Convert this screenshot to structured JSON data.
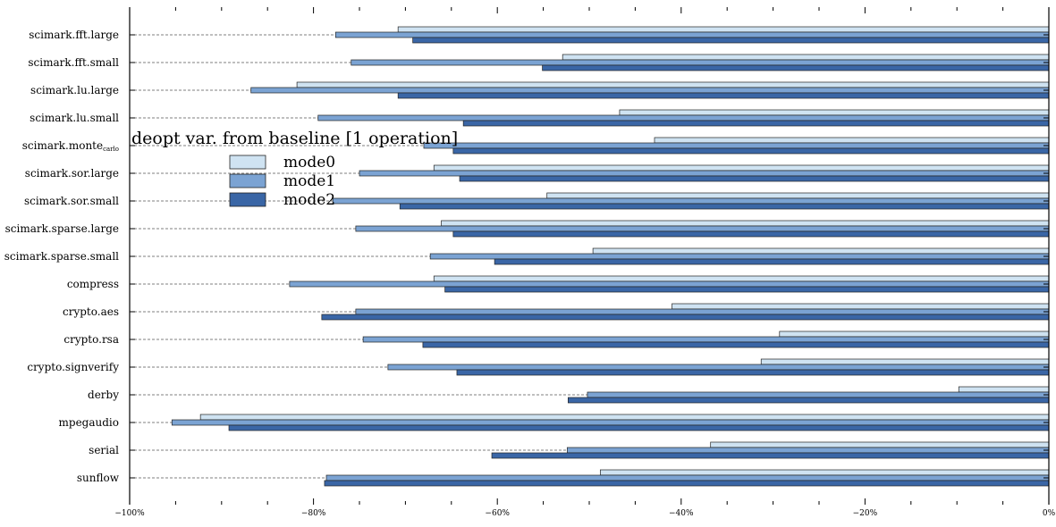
{
  "chart_data": {
    "type": "bar",
    "orientation": "horizontal",
    "title": "",
    "xlabel": "",
    "ylabel": "",
    "xlim": [
      -100,
      0
    ],
    "grid": "dashed horizontal category lines",
    "legend": {
      "title": "deopt var. from baseline [1 operation]",
      "placement": "upper-left"
    },
    "x_ticks": [
      {
        "value": -100,
        "label": "−100%"
      },
      {
        "value": -80,
        "label": "−80%"
      },
      {
        "value": -60,
        "label": "−60%"
      },
      {
        "value": -40,
        "label": "−40%"
      },
      {
        "value": -20,
        "label": "−20%"
      },
      {
        "value": 0,
        "label": "0%"
      }
    ],
    "categories": [
      {
        "main": "scimark.fft.large",
        "sub": ""
      },
      {
        "main": "scimark.fft.small",
        "sub": ""
      },
      {
        "main": "scimark.lu.large",
        "sub": ""
      },
      {
        "main": "scimark.lu.small",
        "sub": ""
      },
      {
        "main": "scimark.monte",
        "sub": "carlo"
      },
      {
        "main": "scimark.sor.large",
        "sub": ""
      },
      {
        "main": "scimark.sor.small",
        "sub": ""
      },
      {
        "main": "scimark.sparse.large",
        "sub": ""
      },
      {
        "main": "scimark.sparse.small",
        "sub": ""
      },
      {
        "main": "compress",
        "sub": ""
      },
      {
        "main": "crypto.aes",
        "sub": ""
      },
      {
        "main": "crypto.rsa",
        "sub": ""
      },
      {
        "main": "crypto.signverify",
        "sub": ""
      },
      {
        "main": "derby",
        "sub": ""
      },
      {
        "main": "mpegaudio",
        "sub": ""
      },
      {
        "main": "serial",
        "sub": ""
      },
      {
        "main": "sunflow",
        "sub": ""
      }
    ],
    "series": [
      {
        "name": "mode0",
        "color": "#cfe3f2",
        "values": [
          -70.8,
          -52.9,
          -81.8,
          -46.7,
          -42.9,
          -66.9,
          -54.6,
          -66.1,
          -49.6,
          -66.9,
          -41.0,
          -29.3,
          -31.3,
          -9.8,
          -92.3,
          -36.8,
          -48.8
        ]
      },
      {
        "name": "mode1",
        "color": "#7ba3d3",
        "values": [
          -77.6,
          -75.9,
          -86.8,
          -79.5,
          -68.0,
          -75.0,
          -77.9,
          -75.4,
          -67.3,
          -82.6,
          -75.4,
          -74.6,
          -71.9,
          -50.2,
          -95.4,
          -52.4,
          -78.6
        ]
      },
      {
        "name": "mode2",
        "color": "#3a66a6",
        "values": [
          -69.2,
          -55.1,
          -70.8,
          -63.7,
          -64.8,
          -64.1,
          -70.6,
          -64.8,
          -60.3,
          -65.7,
          -79.1,
          -68.1,
          -64.4,
          -52.3,
          -89.2,
          -60.6,
          -78.8
        ]
      }
    ]
  }
}
